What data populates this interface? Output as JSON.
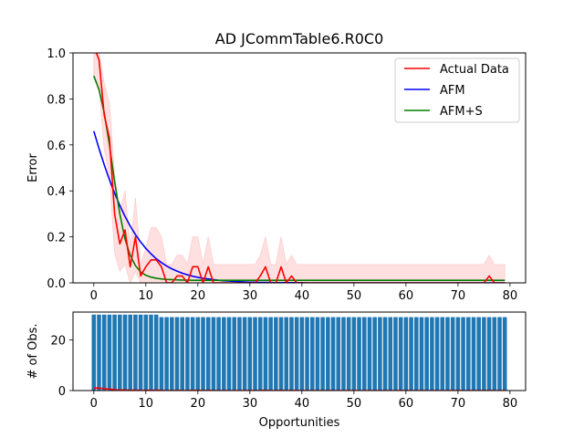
{
  "chart_data": [
    {
      "type": "line",
      "title": "AD JCommTable6.R0C0",
      "xlabel": "",
      "ylabel": "Error",
      "xlim": [
        -4,
        83
      ],
      "ylim": [
        0,
        1
      ],
      "xticks": [
        0,
        10,
        20,
        30,
        40,
        50,
        60,
        70,
        80
      ],
      "yticks": [
        0.0,
        0.2,
        0.4,
        0.6,
        0.8,
        1.0
      ],
      "legend_position": "top-right",
      "series": [
        {
          "name": "Actual Data",
          "color": "#ff0000",
          "x": [
            0,
            1,
            2,
            3,
            4,
            5,
            6,
            7,
            8,
            9,
            10,
            11,
            12,
            13,
            14,
            15,
            16,
            17,
            18,
            19,
            20,
            21,
            22,
            23,
            24,
            25,
            26,
            27,
            28,
            29,
            30,
            31,
            32,
            33,
            34,
            35,
            36,
            37,
            38,
            39,
            40,
            41,
            42,
            43,
            44,
            45,
            46,
            47,
            48,
            49,
            50,
            51,
            52,
            53,
            54,
            55,
            56,
            57,
            58,
            59,
            60,
            61,
            62,
            63,
            64,
            65,
            66,
            67,
            68,
            69,
            70,
            71,
            72,
            73,
            74,
            75,
            76,
            77,
            78,
            79
          ],
          "y": [
            1.03,
            0.97,
            0.73,
            0.63,
            0.3,
            0.17,
            0.23,
            0.07,
            0.2,
            0.03,
            0.07,
            0.1,
            0.1,
            0.07,
            0.0,
            0.0,
            0.03,
            0.03,
            0.0,
            0.07,
            0.07,
            0.0,
            0.07,
            0.0,
            0.0,
            0.0,
            0.0,
            0.0,
            0.0,
            0.0,
            0.0,
            0.0,
            0.03,
            0.07,
            0.0,
            0.0,
            0.07,
            0.0,
            0.03,
            0.0,
            0.0,
            0.0,
            0.0,
            0.0,
            0.0,
            0.0,
            0.0,
            0.0,
            0.0,
            0.0,
            0.0,
            0.0,
            0.0,
            0.0,
            0.0,
            0.0,
            0.0,
            0.0,
            0.0,
            0.0,
            0.0,
            0.0,
            0.0,
            0.0,
            0.0,
            0.0,
            0.0,
            0.0,
            0.0,
            0.0,
            0.0,
            0.0,
            0.0,
            0.0,
            0.0,
            0.0,
            0.03,
            0.0,
            0.0,
            0.0
          ]
        },
        {
          "name": "AFM",
          "color": "#0000ff",
          "x": [
            0,
            1,
            2,
            3,
            4,
            5,
            6,
            7,
            8,
            9,
            10,
            11,
            12,
            13,
            14,
            15,
            16,
            17,
            18,
            19,
            20,
            21,
            22,
            23,
            24,
            25,
            26,
            27,
            28,
            29,
            30,
            31,
            32,
            33,
            34,
            35,
            36,
            37,
            38,
            39,
            40,
            41,
            42,
            43,
            44,
            45,
            46,
            47,
            48,
            49,
            50,
            51,
            52,
            53,
            54,
            55,
            56,
            57,
            58,
            59,
            60,
            61,
            62,
            63,
            64,
            65,
            66,
            67,
            68,
            69,
            70,
            71,
            72,
            73,
            74,
            75,
            76,
            77,
            78,
            79
          ],
          "y": [
            0.66,
            0.584,
            0.514,
            0.449,
            0.39,
            0.337,
            0.289,
            0.247,
            0.21,
            0.178,
            0.15,
            0.126,
            0.105,
            0.088,
            0.073,
            0.061,
            0.051,
            0.042,
            0.035,
            0.029,
            0.024,
            0.02,
            0.017,
            0.014,
            0.011,
            0.009,
            0.008,
            0.006,
            0.005,
            0.004,
            0.003,
            0.003,
            0.002,
            0.002,
            0.002,
            0.001,
            0.001,
            0.001,
            0.001,
            0.001,
            0.001,
            0.0,
            0.0,
            0.0,
            0.0,
            0.0,
            0.0,
            0.0,
            0.0,
            0.0,
            0.0,
            0.0,
            0.0,
            0.0,
            0.0,
            0.0,
            0.0,
            0.0,
            0.0,
            0.0,
            0.0,
            0.0,
            0.0,
            0.0,
            0.0,
            0.0,
            0.0,
            0.0,
            0.0,
            0.0,
            0.0,
            0.0,
            0.0,
            0.0,
            0.0,
            0.0,
            0.0,
            0.0,
            0.0,
            0.0
          ]
        },
        {
          "name": "AFM+S",
          "color": "#008000",
          "x": [
            0,
            1,
            2,
            3,
            4,
            5,
            6,
            7,
            8,
            9,
            10,
            11,
            12,
            13,
            14,
            15,
            16,
            17,
            18,
            19,
            20,
            21,
            22,
            23,
            24,
            25,
            26,
            27,
            28,
            29,
            30,
            31,
            32,
            33,
            34,
            35,
            36,
            37,
            38,
            39,
            40,
            41,
            42,
            43,
            44,
            45,
            46,
            47,
            48,
            49,
            50,
            51,
            52,
            53,
            54,
            55,
            56,
            57,
            58,
            59,
            60,
            61,
            62,
            63,
            64,
            65,
            66,
            67,
            68,
            69,
            70,
            71,
            72,
            73,
            74,
            75,
            76,
            77,
            78,
            79
          ],
          "y": [
            0.9,
            0.84,
            0.74,
            0.6,
            0.44,
            0.3,
            0.19,
            0.12,
            0.075,
            0.048,
            0.033,
            0.025,
            0.02,
            0.017,
            0.015,
            0.014,
            0.013,
            0.012,
            0.012,
            0.011,
            0.011,
            0.011,
            0.011,
            0.011,
            0.011,
            0.011,
            0.011,
            0.011,
            0.011,
            0.011,
            0.011,
            0.011,
            0.011,
            0.011,
            0.011,
            0.011,
            0.011,
            0.011,
            0.011,
            0.011,
            0.011,
            0.011,
            0.011,
            0.011,
            0.011,
            0.011,
            0.011,
            0.011,
            0.011,
            0.011,
            0.011,
            0.011,
            0.011,
            0.011,
            0.011,
            0.011,
            0.011,
            0.011,
            0.011,
            0.011,
            0.011,
            0.011,
            0.011,
            0.011,
            0.011,
            0.011,
            0.011,
            0.011,
            0.011,
            0.011,
            0.011,
            0.011,
            0.011,
            0.011,
            0.011,
            0.011,
            0.011,
            0.011,
            0.011,
            0.011
          ]
        }
      ],
      "confidence_band": {
        "color": "#ffcccc",
        "x": [
          0,
          1,
          2,
          3,
          4,
          5,
          6,
          7,
          8,
          9,
          10,
          11,
          12,
          13,
          14,
          15,
          16,
          17,
          18,
          19,
          20,
          21,
          22,
          23,
          24,
          25,
          26,
          27,
          28,
          29,
          30,
          31,
          32,
          33,
          34,
          35,
          36,
          37,
          38,
          39,
          40,
          41,
          42,
          43,
          44,
          45,
          46,
          47,
          48,
          49,
          50,
          51,
          52,
          53,
          54,
          55,
          56,
          57,
          58,
          59,
          60,
          61,
          62,
          63,
          64,
          65,
          66,
          67,
          68,
          69,
          70,
          71,
          72,
          73,
          74,
          75,
          76,
          77,
          78,
          79
        ],
        "lower": [
          0.9,
          0.86,
          0.58,
          0.47,
          0.13,
          0.05,
          0.08,
          0.0,
          0.05,
          0.0,
          0.0,
          0.0,
          0.0,
          0.0,
          0.0,
          0.0,
          0.0,
          0.0,
          0.0,
          0.0,
          0.0,
          0.0,
          0.0,
          0.0,
          0.0,
          0.0,
          0.0,
          0.0,
          0.0,
          0.0,
          0.0,
          0.0,
          0.0,
          0.0,
          0.0,
          0.0,
          0.0,
          0.0,
          0.0,
          0.0,
          0.0,
          0.0,
          0.0,
          0.0,
          0.0,
          0.0,
          0.0,
          0.0,
          0.0,
          0.0,
          0.0,
          0.0,
          0.0,
          0.0,
          0.0,
          0.0,
          0.0,
          0.0,
          0.0,
          0.0,
          0.0,
          0.0,
          0.0,
          0.0,
          0.0,
          0.0,
          0.0,
          0.0,
          0.0,
          0.0,
          0.0,
          0.0,
          0.0,
          0.0,
          0.0,
          0.0,
          0.0,
          0.0,
          0.0,
          0.0
        ],
        "upper": [
          1.0,
          1.0,
          0.87,
          0.78,
          0.47,
          0.31,
          0.4,
          0.15,
          0.37,
          0.08,
          0.15,
          0.24,
          0.24,
          0.2,
          0.08,
          0.08,
          0.12,
          0.12,
          0.08,
          0.2,
          0.2,
          0.08,
          0.2,
          0.08,
          0.08,
          0.08,
          0.08,
          0.08,
          0.08,
          0.08,
          0.08,
          0.08,
          0.12,
          0.2,
          0.08,
          0.08,
          0.2,
          0.08,
          0.12,
          0.08,
          0.08,
          0.08,
          0.08,
          0.08,
          0.08,
          0.08,
          0.08,
          0.08,
          0.08,
          0.08,
          0.08,
          0.08,
          0.08,
          0.08,
          0.08,
          0.08,
          0.08,
          0.08,
          0.08,
          0.08,
          0.08,
          0.08,
          0.08,
          0.08,
          0.08,
          0.08,
          0.08,
          0.08,
          0.08,
          0.08,
          0.08,
          0.08,
          0.08,
          0.08,
          0.08,
          0.08,
          0.12,
          0.08,
          0.08,
          0.08
        ]
      }
    },
    {
      "type": "bar",
      "title": "",
      "xlabel": "Opportunities",
      "ylabel": "# of Obs.",
      "xlim": [
        -4,
        83
      ],
      "ylim": [
        0,
        31
      ],
      "xticks": [
        0,
        10,
        20,
        30,
        40,
        50,
        60,
        70,
        80
      ],
      "yticks": [
        0,
        20
      ],
      "bar_color": "#1f77b4",
      "line_color": "#ff0000",
      "x": [
        0,
        1,
        2,
        3,
        4,
        5,
        6,
        7,
        8,
        9,
        10,
        11,
        12,
        13,
        14,
        15,
        16,
        17,
        18,
        19,
        20,
        21,
        22,
        23,
        24,
        25,
        26,
        27,
        28,
        29,
        30,
        31,
        32,
        33,
        34,
        35,
        36,
        37,
        38,
        39,
        40,
        41,
        42,
        43,
        44,
        45,
        46,
        47,
        48,
        49,
        50,
        51,
        52,
        53,
        54,
        55,
        56,
        57,
        58,
        59,
        60,
        61,
        62,
        63,
        64,
        65,
        66,
        67,
        68,
        69,
        70,
        71,
        72,
        73,
        74,
        75,
        76,
        77,
        78,
        79
      ],
      "values": [
        30,
        30,
        30,
        30,
        30,
        30,
        30,
        30,
        30,
        30,
        30,
        30,
        30,
        29,
        29,
        29,
        29,
        29,
        29,
        29,
        29,
        29,
        29,
        29,
        29,
        29,
        29,
        29,
        29,
        29,
        29,
        29,
        29,
        29,
        29,
        29,
        29,
        29,
        29,
        29,
        29,
        29,
        29,
        29,
        29,
        29,
        29,
        29,
        29,
        29,
        29,
        29,
        29,
        29,
        29,
        29,
        29,
        29,
        29,
        29,
        29,
        29,
        29,
        29,
        29,
        29,
        29,
        29,
        29,
        29,
        29,
        29,
        29,
        29,
        29,
        29,
        29,
        29,
        29,
        29
      ],
      "line_values": [
        1.03,
        0.97,
        0.73,
        0.63,
        0.3,
        0.17,
        0.23,
        0.07,
        0.2,
        0.03,
        0.07,
        0.1,
        0.1,
        0.07,
        0.0,
        0.0,
        0.03,
        0.03,
        0.0,
        0.07,
        0.07,
        0.0,
        0.07,
        0.0,
        0.0,
        0.0,
        0.0,
        0.0,
        0.0,
        0.0,
        0.0,
        0.0,
        0.03,
        0.07,
        0.0,
        0.0,
        0.07,
        0.0,
        0.03,
        0.0,
        0.0,
        0.0,
        0.0,
        0.0,
        0.0,
        0.0,
        0.0,
        0.0,
        0.0,
        0.0,
        0.0,
        0.0,
        0.0,
        0.0,
        0.0,
        0.0,
        0.0,
        0.0,
        0.0,
        0.0,
        0.0,
        0.0,
        0.0,
        0.0,
        0.0,
        0.0,
        0.0,
        0.0,
        0.0,
        0.0,
        0.0,
        0.0,
        0.0,
        0.0,
        0.0,
        0.0,
        0.03,
        0.0,
        0.0,
        0.0
      ]
    }
  ]
}
